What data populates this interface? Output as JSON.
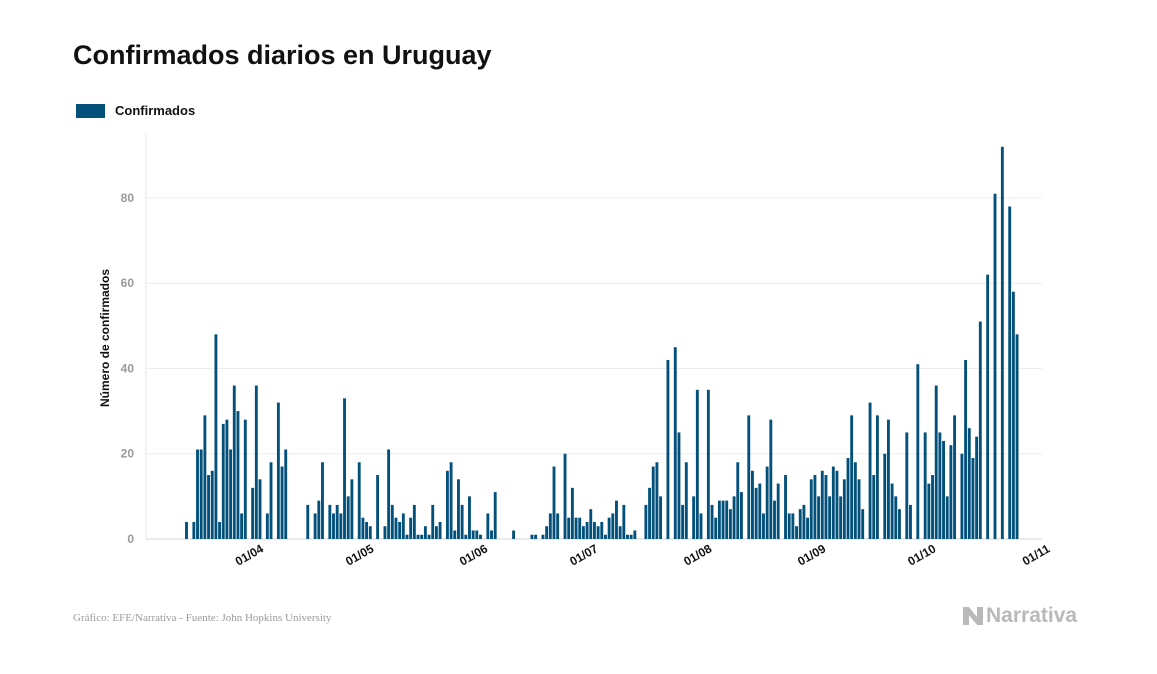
{
  "chart_data": {
    "type": "bar",
    "title": "Confirmados diarios en Uruguay",
    "xlabel": "",
    "ylabel": "Número de confirmados",
    "ylim": [
      0,
      95
    ],
    "yticks": [
      0,
      20,
      40,
      60,
      80
    ],
    "grid": "horizontal",
    "legend_position": "top-left",
    "color": "#03507a",
    "series": [
      {
        "name": "Confirmados",
        "start_date": "2020-03-13",
        "values": [
          4,
          0,
          4,
          21,
          21,
          29,
          15,
          16,
          48,
          4,
          27,
          28,
          21,
          36,
          30,
          6,
          28,
          0,
          12,
          36,
          14,
          0,
          6,
          18,
          0,
          32,
          17,
          21,
          0,
          0,
          0,
          0,
          0,
          8,
          0,
          6,
          9,
          18,
          0,
          8,
          6,
          8,
          6,
          33,
          10,
          14,
          0,
          18,
          5,
          4,
          3,
          0,
          15,
          0,
          3,
          21,
          8,
          5,
          4,
          6,
          1,
          5,
          8,
          1,
          1,
          3,
          1,
          8,
          3,
          4,
          0,
          16,
          18,
          2,
          14,
          8,
          1,
          10,
          2,
          2,
          1,
          0,
          6,
          2,
          11,
          0,
          0,
          0,
          0,
          2,
          0,
          0,
          0,
          0,
          1,
          1,
          0,
          1,
          3,
          6,
          17,
          6,
          0,
          20,
          5,
          12,
          5,
          5,
          3,
          4,
          7,
          4,
          3,
          4,
          1,
          5,
          6,
          9,
          3,
          8,
          1,
          1,
          2,
          0,
          0,
          8,
          12,
          17,
          18,
          10,
          0,
          42,
          0,
          45,
          25,
          8,
          18,
          0,
          10,
          35,
          6,
          0,
          35,
          8,
          5,
          9,
          9,
          9,
          7,
          10,
          18,
          11,
          0,
          29,
          16,
          12,
          13,
          6,
          17,
          28,
          9,
          13,
          0,
          15,
          6,
          6,
          3,
          7,
          8,
          5,
          14,
          15,
          10,
          16,
          15,
          10,
          17,
          16,
          10,
          14,
          19,
          29,
          18,
          14,
          7,
          0,
          32,
          15,
          29,
          0,
          20,
          28,
          13,
          10,
          7,
          0,
          25,
          8,
          0,
          41,
          0,
          25,
          13,
          15,
          36,
          25,
          23,
          10,
          22,
          29,
          0,
          20,
          42,
          26,
          19,
          24,
          51,
          0,
          62,
          0,
          81,
          0,
          92,
          0,
          78,
          58,
          48
        ]
      }
    ],
    "xticks": [
      {
        "date": "2020-04-01",
        "label": "01/04"
      },
      {
        "date": "2020-05-01",
        "label": "01/05"
      },
      {
        "date": "2020-06-01",
        "label": "01/06"
      },
      {
        "date": "2020-07-01",
        "label": "01/07"
      },
      {
        "date": "2020-08-01",
        "label": "01/08"
      },
      {
        "date": "2020-09-01",
        "label": "01/09"
      },
      {
        "date": "2020-10-01",
        "label": "01/10"
      },
      {
        "date": "2020-11-01",
        "label": "01/11"
      }
    ]
  },
  "footer": {
    "source": "Gráfico: EFE/Narrativa - Fuente: John Hopkins University",
    "brand": "Narrativa"
  }
}
